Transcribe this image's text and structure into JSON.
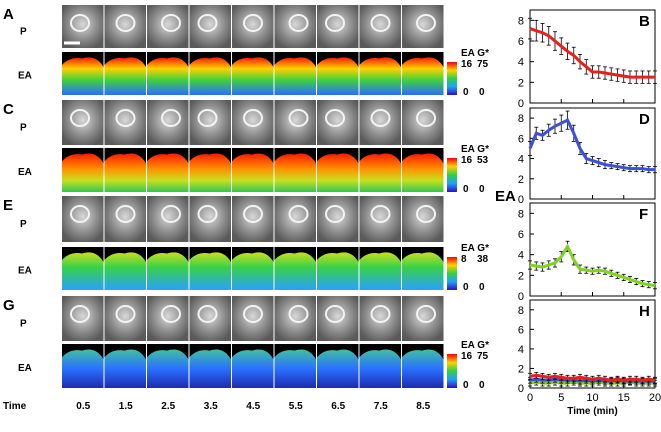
{
  "panels": [
    {
      "label": "A",
      "p_label": "P",
      "e_label": "EA",
      "scale_header": "EA G*",
      "scale_max": [
        "16",
        "75"
      ],
      "scale_min": [
        "0",
        "0"
      ]
    },
    {
      "label": "C",
      "p_label": "P",
      "e_label": "EA",
      "scale_header": "EA G*",
      "scale_max": [
        "16",
        "53"
      ],
      "scale_min": [
        "0",
        "0"
      ]
    },
    {
      "label": "E",
      "p_label": "P",
      "e_label": "EA",
      "scale_header": "EA G*",
      "scale_max": [
        "8",
        "38"
      ],
      "scale_min": [
        "0",
        "0"
      ]
    },
    {
      "label": "G",
      "p_label": "P",
      "e_label": "EA",
      "scale_header": "EA G*",
      "scale_max": [
        "16",
        "75"
      ],
      "scale_min": [
        "0",
        "0"
      ]
    }
  ],
  "time_row": {
    "label": "Time",
    "values": [
      "0.5",
      "1.5",
      "2.5",
      "3.5",
      "4.5",
      "5.5",
      "6.5",
      "7.5",
      "8.5"
    ]
  },
  "chart_data": [
    {
      "type": "line",
      "panel_label": "B",
      "x": [
        0,
        1,
        2,
        3,
        4,
        5,
        6,
        7,
        8,
        9,
        10,
        11,
        12,
        13,
        14,
        15,
        16,
        17,
        18,
        19,
        20
      ],
      "xlim": [
        0,
        20
      ],
      "xticks": [
        0,
        5,
        10,
        15,
        20
      ],
      "ylim": [
        0,
        9
      ],
      "yticks": [
        0,
        2,
        4,
        6,
        8
      ],
      "series": [
        {
          "color": "#e8201c",
          "values": [
            7.2,
            7.0,
            6.8,
            6.5,
            6.0,
            5.5,
            5.0,
            4.6,
            4.0,
            3.5,
            3.0,
            3.0,
            2.9,
            2.8,
            2.7,
            2.6,
            2.5,
            2.5,
            2.5,
            2.5,
            2.5
          ],
          "errors": [
            1.0,
            1.0,
            0.9,
            0.9,
            0.9,
            0.8,
            0.8,
            0.8,
            0.7,
            0.7,
            0.6,
            0.6,
            0.6,
            0.6,
            0.6,
            0.6,
            0.6,
            0.6,
            0.6,
            0.6,
            0.6
          ]
        }
      ]
    },
    {
      "type": "line",
      "panel_label": "D",
      "x": [
        0,
        1,
        2,
        3,
        4,
        5,
        6,
        7,
        8,
        9,
        10,
        11,
        12,
        13,
        14,
        15,
        16,
        17,
        18,
        19,
        20
      ],
      "xlim": [
        0,
        20
      ],
      "xticks": [
        0,
        5,
        10,
        15,
        20
      ],
      "ylim": [
        0,
        9
      ],
      "yticks": [
        0,
        2,
        4,
        6,
        8
      ],
      "series": [
        {
          "color": "#3c50d8",
          "values": [
            5.0,
            6.5,
            6.3,
            6.8,
            7.2,
            7.5,
            7.8,
            6.5,
            5.0,
            4.0,
            3.8,
            3.6,
            3.4,
            3.3,
            3.2,
            3.1,
            3.0,
            3.0,
            3.0,
            2.9,
            2.9
          ],
          "errors": [
            0.7,
            0.6,
            0.5,
            0.6,
            0.7,
            0.8,
            0.9,
            0.8,
            0.6,
            0.5,
            0.4,
            0.4,
            0.4,
            0.3,
            0.3,
            0.3,
            0.3,
            0.3,
            0.3,
            0.3,
            0.3
          ]
        }
      ]
    },
    {
      "type": "line",
      "panel_label": "F",
      "ylabel": "EA",
      "x": [
        0,
        1,
        2,
        3,
        4,
        5,
        6,
        7,
        8,
        9,
        10,
        11,
        12,
        13,
        14,
        15,
        16,
        17,
        18,
        19,
        20
      ],
      "xlim": [
        0,
        20
      ],
      "xticks": [
        0,
        5,
        10,
        15,
        20
      ],
      "ylim": [
        0,
        9
      ],
      "yticks": [
        0,
        2,
        4,
        6,
        8
      ],
      "series": [
        {
          "color": "#7ed321",
          "values": [
            3.0,
            2.9,
            2.8,
            3.0,
            3.2,
            3.8,
            4.8,
            3.5,
            2.6,
            2.5,
            2.4,
            2.5,
            2.4,
            2.2,
            2.0,
            1.8,
            1.6,
            1.4,
            1.2,
            1.1,
            1.0
          ],
          "errors": [
            0.4,
            0.4,
            0.4,
            0.4,
            0.4,
            0.5,
            0.5,
            0.5,
            0.4,
            0.3,
            0.3,
            0.3,
            0.3,
            0.3,
            0.3,
            0.3,
            0.3,
            0.3,
            0.3,
            0.3,
            0.3
          ]
        }
      ]
    },
    {
      "type": "line",
      "panel_label": "H",
      "xlabel": "Time (min)",
      "x": [
        0,
        1,
        2,
        3,
        4,
        5,
        6,
        7,
        8,
        9,
        10,
        11,
        12,
        13,
        14,
        15,
        16,
        17,
        18,
        19,
        20
      ],
      "xlim": [
        0,
        20
      ],
      "xticks": [
        0,
        5,
        10,
        15,
        20
      ],
      "ylim": [
        0,
        9
      ],
      "yticks": [
        0,
        2,
        4,
        6,
        8
      ],
      "series": [
        {
          "color": "#7ed321",
          "values": [
            0.5,
            0.6,
            0.5,
            0.5,
            0.6,
            0.5,
            0.5,
            0.6,
            0.5,
            0.5,
            0.5,
            0.6,
            0.5,
            0.5,
            0.5,
            0.5,
            0.6,
            0.5,
            0.5,
            0.5,
            0.5
          ],
          "errors": [
            0.3,
            0.3,
            0.3,
            0.3,
            0.3,
            0.3,
            0.3,
            0.3,
            0.3,
            0.3,
            0.3,
            0.3,
            0.3,
            0.3,
            0.3,
            0.3,
            0.3,
            0.3,
            0.3,
            0.3,
            0.3
          ]
        },
        {
          "color": "#3c50d8",
          "values": [
            0.8,
            0.9,
            0.8,
            0.8,
            0.9,
            0.8,
            0.8,
            0.8,
            0.7,
            0.8,
            0.7,
            0.8,
            0.7,
            0.7,
            0.8,
            0.7,
            0.7,
            0.7,
            0.7,
            0.7,
            0.7
          ],
          "errors": [
            0.3,
            0.3,
            0.3,
            0.3,
            0.3,
            0.3,
            0.3,
            0.3,
            0.3,
            0.3,
            0.3,
            0.3,
            0.3,
            0.3,
            0.3,
            0.3,
            0.3,
            0.3,
            0.3,
            0.3,
            0.3
          ]
        },
        {
          "color": "#e8201c",
          "values": [
            1.2,
            1.3,
            1.2,
            1.1,
            1.2,
            1.1,
            1.0,
            1.0,
            1.1,
            1.0,
            0.9,
            1.0,
            0.9,
            0.8,
            0.9,
            0.8,
            0.9,
            0.9,
            0.8,
            0.9,
            0.8
          ],
          "errors": [
            0.3,
            0.3,
            0.3,
            0.3,
            0.3,
            0.3,
            0.3,
            0.3,
            0.3,
            0.3,
            0.3,
            0.3,
            0.3,
            0.3,
            0.3,
            0.3,
            0.3,
            0.3,
            0.3,
            0.3,
            0.3
          ]
        }
      ]
    }
  ]
}
